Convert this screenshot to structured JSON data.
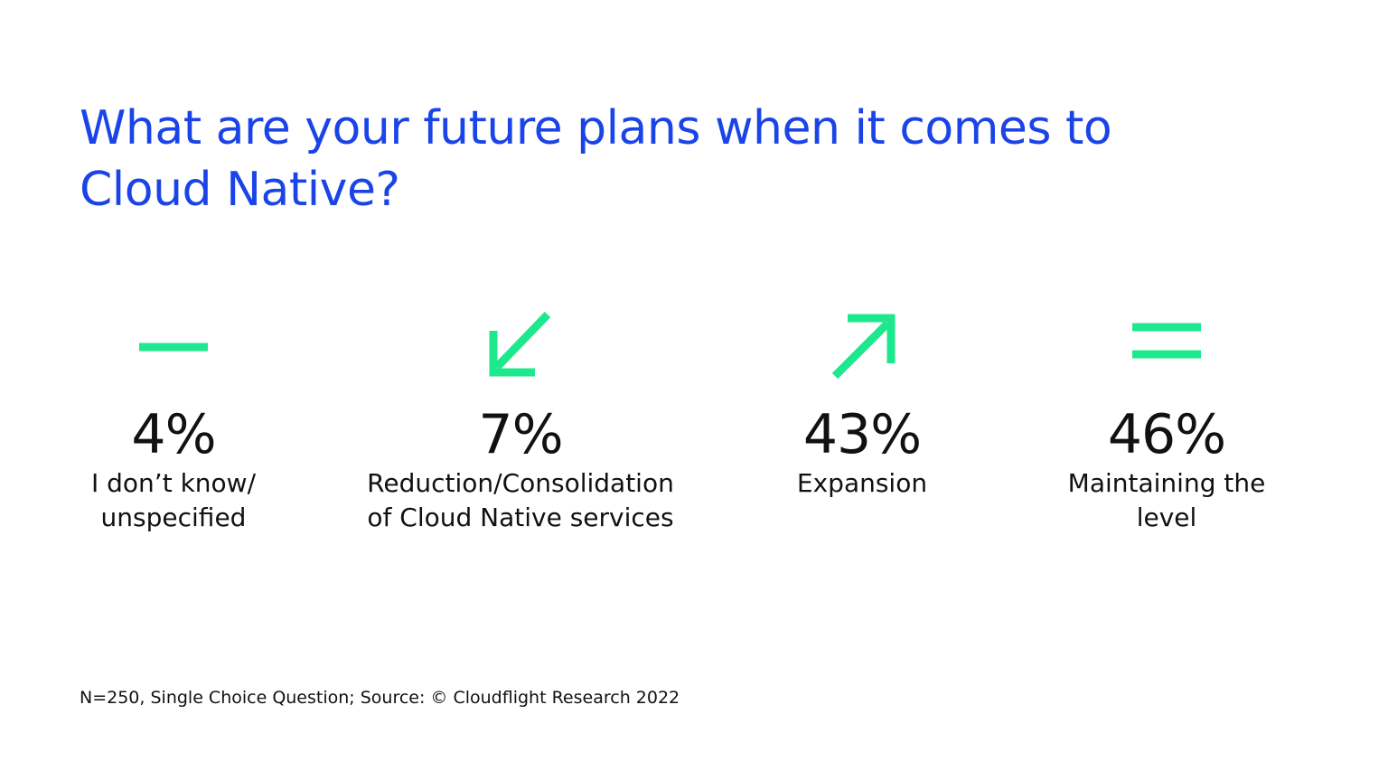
{
  "title": "What are your future plans when it comes to Cloud Native?",
  "accent_color": "#1a44e8",
  "icon_color": "#1ee88e",
  "chart_data": {
    "type": "table",
    "title": "What are your future plans when it comes to Cloud Native?",
    "unit": "%",
    "items": [
      {
        "icon": "minus-icon",
        "value": "4%",
        "label_lines": [
          "I don’t know/",
          "unspecified"
        ]
      },
      {
        "icon": "arrow-down-left-icon",
        "value": "7%",
        "label_lines": [
          "Reduction/Consolidation",
          "of Cloud Native services"
        ]
      },
      {
        "icon": "arrow-up-right-icon",
        "value": "43%",
        "label_lines": [
          "Expansion"
        ]
      },
      {
        "icon": "equals-icon",
        "value": "46%",
        "label_lines": [
          "Maintaining the",
          "level"
        ]
      }
    ]
  },
  "footnote": "N=250, Single Choice Question; Source: © Cloudflight Research 2022"
}
